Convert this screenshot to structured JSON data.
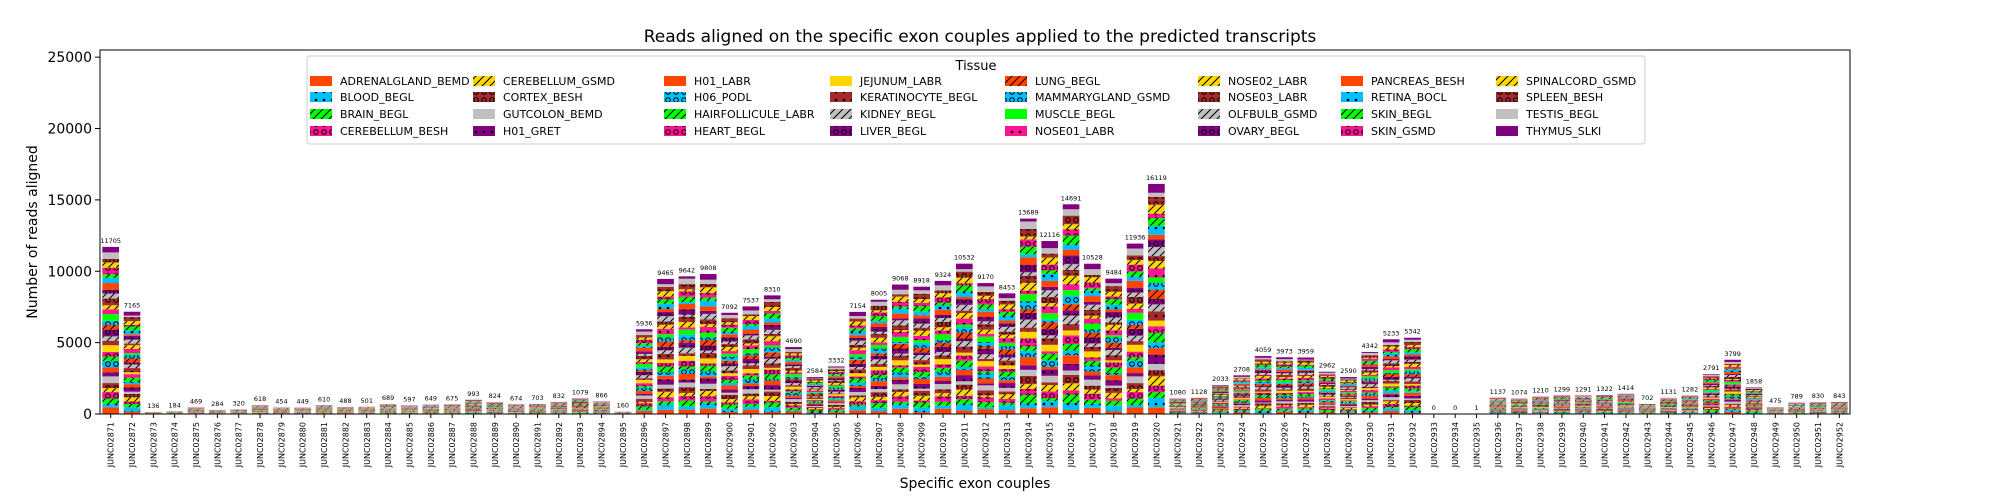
{
  "chart_data": {
    "type": "bar",
    "stacked": true,
    "title": "Reads aligned on the specific exon couples applied to the predicted transcripts",
    "xlabel": "Specific exon couples",
    "ylabel": "Number of reads aligned",
    "ylim": [
      0,
      25500
    ],
    "yticks": [
      0,
      5000,
      10000,
      15000,
      20000,
      25000
    ],
    "grid": false,
    "legend_title": "Tissue",
    "legend_position": "top-center",
    "categories": [
      "JUNC02871",
      "JUNC02872",
      "JUNC02873",
      "JUNC02874",
      "JUNC02875",
      "JUNC02876",
      "JUNC02877",
      "JUNC02878",
      "JUNC02879",
      "JUNC02880",
      "JUNC02881",
      "JUNC02882",
      "JUNC02883",
      "JUNC02884",
      "JUNC02885",
      "JUNC02886",
      "JUNC02887",
      "JUNC02888",
      "JUNC02889",
      "JUNC02890",
      "JUNC02891",
      "JUNC02892",
      "JUNC02893",
      "JUNC02894",
      "JUNC02895",
      "JUNC02896",
      "JUNC02897",
      "JUNC02898",
      "JUNC02899",
      "JUNC02900",
      "JUNC02901",
      "JUNC02902",
      "JUNC02903",
      "JUNC02904",
      "JUNC02905",
      "JUNC02906",
      "JUNC02907",
      "JUNC02908",
      "JUNC02909",
      "JUNC02910",
      "JUNC02911",
      "JUNC02912",
      "JUNC02913",
      "JUNC02914",
      "JUNC02915",
      "JUNC02916",
      "JUNC02917",
      "JUNC02918",
      "JUNC02919",
      "JUNC02920",
      "JUNC02921",
      "JUNC02922",
      "JUNC02923",
      "JUNC02924",
      "JUNC02925",
      "JUNC02926",
      "JUNC02927",
      "JUNC02928",
      "JUNC02929",
      "JUNC02930",
      "JUNC02931",
      "JUNC02932",
      "JUNC02933",
      "JUNC02934",
      "JUNC02935",
      "JUNC02936",
      "JUNC02937",
      "JUNC02938",
      "JUNC02939",
      "JUNC02940",
      "JUNC02941",
      "JUNC02942",
      "JUNC02943",
      "JUNC02944",
      "JUNC02945",
      "JUNC02946",
      "JUNC02947",
      "JUNC02948",
      "JUNC02949",
      "JUNC02950",
      "JUNC02951",
      "JUNC02952"
    ],
    "totals": [
      11705,
      7165,
      136,
      184,
      469,
      284,
      320,
      618,
      454,
      449,
      610,
      488,
      501,
      689,
      597,
      649,
      675,
      993,
      824,
      674,
      703,
      832,
      1079,
      866,
      160,
      5936,
      9465,
      9642,
      9808,
      7092,
      7537,
      8310,
      4690,
      2584,
      3332,
      7154,
      8005,
      9068,
      8918,
      9324,
      10532,
      9170,
      8453,
      13689,
      12116,
      14691,
      10528,
      9484,
      11936,
      16119,
      1080,
      1128,
      2033,
      2708,
      4059,
      3973,
      3959,
      2962,
      2590,
      4342,
      5233,
      5342,
      0,
      0,
      1,
      1137,
      1074,
      1210,
      1299,
      1291,
      1322,
      1414,
      702,
      1131,
      1282,
      2791,
      3799,
      1858,
      475,
      789,
      830,
      843
    ],
    "series": [
      {
        "name": "ADRENALGLAND_BEMD",
        "color": "#ff4500",
        "hatch": "none"
      },
      {
        "name": "BLOOD_BEGL",
        "color": "#00bfff",
        "hatch": "dot"
      },
      {
        "name": "BRAIN_BEGL",
        "color": "#00ff00",
        "hatch": "slash"
      },
      {
        "name": "CEREBELLUM_BESH",
        "color": "#ff1493",
        "hatch": "circle"
      },
      {
        "name": "CEREBELLUM_GSMD",
        "color": "#ffd700",
        "hatch": "slash"
      },
      {
        "name": "CORTEX_BESH",
        "color": "#a52a2a",
        "hatch": "circle"
      },
      {
        "name": "GUTCOLON_BEMD",
        "color": "#c0c0c0",
        "hatch": "none"
      },
      {
        "name": "H01_GRET",
        "color": "#800080",
        "hatch": "dot"
      },
      {
        "name": "H01_LABR",
        "color": "#ff4500",
        "hatch": "none"
      },
      {
        "name": "H06_PODL",
        "color": "#00bfff",
        "hatch": "circle"
      },
      {
        "name": "HAIRFOLLICULE_LABR",
        "color": "#00ff00",
        "hatch": "slash"
      },
      {
        "name": "HEART_BEGL",
        "color": "#ff1493",
        "hatch": "circle"
      },
      {
        "name": "JEJUNUM_LABR",
        "color": "#ffd700",
        "hatch": "none"
      },
      {
        "name": "KERATINOCYTE_BEGL",
        "color": "#a52a2a",
        "hatch": "dot"
      },
      {
        "name": "KIDNEY_BEGL",
        "color": "#c0c0c0",
        "hatch": "slash"
      },
      {
        "name": "LIVER_BEGL",
        "color": "#800080",
        "hatch": "circle"
      },
      {
        "name": "LUNG_BEGL",
        "color": "#ff4500",
        "hatch": "slash"
      },
      {
        "name": "MAMMARYGLAND_GSMD",
        "color": "#00bfff",
        "hatch": "circle"
      },
      {
        "name": "MUSCLE_BEGL",
        "color": "#00ff00",
        "hatch": "none"
      },
      {
        "name": "NOSE01_LABR",
        "color": "#ff1493",
        "hatch": "dot"
      },
      {
        "name": "NOSE02_LABR",
        "color": "#ffd700",
        "hatch": "slash"
      },
      {
        "name": "NOSE03_LABR",
        "color": "#a52a2a",
        "hatch": "circle"
      },
      {
        "name": "OLFBULB_GSMD",
        "color": "#c0c0c0",
        "hatch": "slash"
      },
      {
        "name": "OVARY_BEGL",
        "color": "#800080",
        "hatch": "circle"
      },
      {
        "name": "PANCREAS_BESH",
        "color": "#ff4500",
        "hatch": "none"
      },
      {
        "name": "RETINA_BOCL",
        "color": "#00bfff",
        "hatch": "dot"
      },
      {
        "name": "SKIN_BEGL",
        "color": "#00ff00",
        "hatch": "slash"
      },
      {
        "name": "SKIN_GSMD",
        "color": "#ff1493",
        "hatch": "circle"
      },
      {
        "name": "SPINALCORD_GSMD",
        "color": "#ffd700",
        "hatch": "slash"
      },
      {
        "name": "SPLEEN_BESH",
        "color": "#a52a2a",
        "hatch": "circle"
      },
      {
        "name": "TESTIS_BEGL",
        "color": "#c0c0c0",
        "hatch": "none"
      },
      {
        "name": "THYMUS_SLKI",
        "color": "#800080",
        "hatch": "none"
      }
    ]
  }
}
